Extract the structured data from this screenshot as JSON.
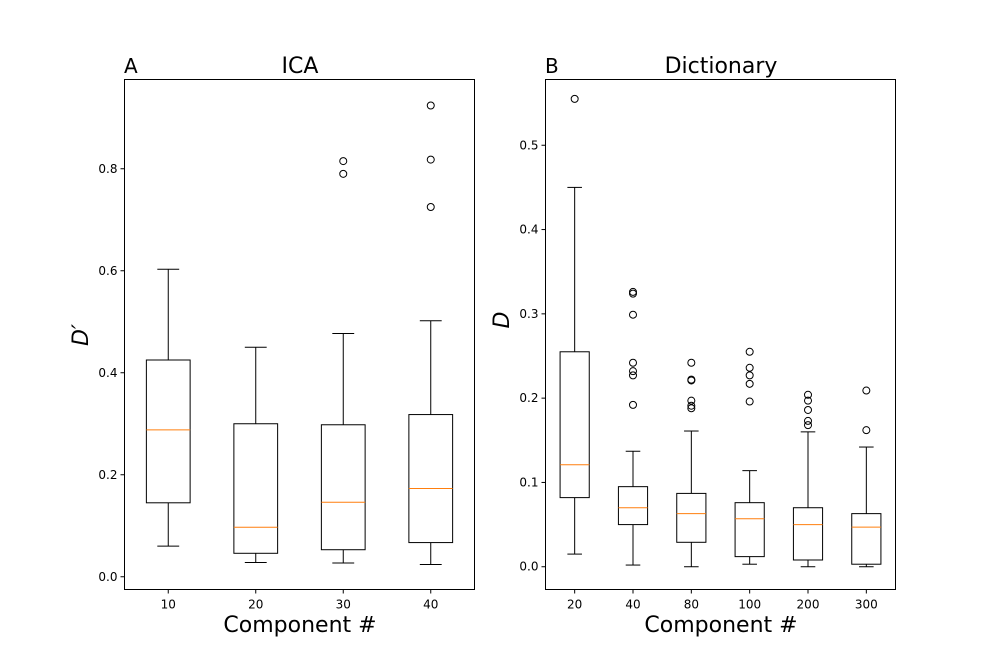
{
  "chart_data": [
    {
      "type": "boxplot",
      "panel": "A",
      "title": "ICA",
      "xlabel": "Component #",
      "ylabel": "D′",
      "ylim": [
        -0.025,
        0.975
      ],
      "yticks": [
        0.0,
        0.2,
        0.4,
        0.6,
        0.8
      ],
      "ytick_labels": [
        "0.0",
        "0.2",
        "0.4",
        "0.6",
        "0.8"
      ],
      "median_color": "#ff7f0e",
      "boxes": [
        {
          "label": "10",
          "whislo": 0.06,
          "q1": 0.145,
          "med": 0.288,
          "q3": 0.425,
          "whishi": 0.603,
          "fliers": []
        },
        {
          "label": "20",
          "whislo": 0.028,
          "q1": 0.046,
          "med": 0.097,
          "q3": 0.3,
          "whishi": 0.45,
          "fliers": []
        },
        {
          "label": "30",
          "whislo": 0.027,
          "q1": 0.053,
          "med": 0.146,
          "q3": 0.298,
          "whishi": 0.477,
          "fliers": [
            0.79,
            0.815
          ]
        },
        {
          "label": "40",
          "whislo": 0.024,
          "q1": 0.067,
          "med": 0.173,
          "q3": 0.318,
          "whishi": 0.502,
          "fliers": [
            0.725,
            0.818,
            0.924
          ]
        }
      ]
    },
    {
      "type": "boxplot",
      "panel": "B",
      "title": "Dictionary",
      "xlabel": "Component #",
      "ylabel": "D",
      "ylim": [
        -0.027,
        0.578
      ],
      "yticks": [
        0.0,
        0.1,
        0.2,
        0.3,
        0.4,
        0.5
      ],
      "ytick_labels": [
        "0.0",
        "0.1",
        "0.2",
        "0.3",
        "0.4",
        "0.5"
      ],
      "median_color": "#ff7f0e",
      "boxes": [
        {
          "label": "20",
          "whislo": 0.015,
          "q1": 0.082,
          "med": 0.121,
          "q3": 0.255,
          "whishi": 0.45,
          "fliers": [
            0.555
          ]
        },
        {
          "label": "40",
          "whislo": 0.002,
          "q1": 0.05,
          "med": 0.07,
          "q3": 0.095,
          "whishi": 0.137,
          "fliers": [
            0.192,
            0.227,
            0.232,
            0.242,
            0.299,
            0.324,
            0.326
          ]
        },
        {
          "label": "80",
          "whislo": 0.0,
          "q1": 0.029,
          "med": 0.063,
          "q3": 0.087,
          "whishi": 0.161,
          "fliers": [
            0.188,
            0.191,
            0.197,
            0.221,
            0.222,
            0.242
          ]
        },
        {
          "label": "100",
          "whislo": 0.003,
          "q1": 0.012,
          "med": 0.057,
          "q3": 0.076,
          "whishi": 0.114,
          "fliers": [
            0.196,
            0.217,
            0.227,
            0.236,
            0.255
          ]
        },
        {
          "label": "200",
          "whislo": 0.0,
          "q1": 0.008,
          "med": 0.05,
          "q3": 0.07,
          "whishi": 0.16,
          "fliers": [
            0.168,
            0.173,
            0.186,
            0.197,
            0.204
          ]
        },
        {
          "label": "300",
          "whislo": 0.0,
          "q1": 0.003,
          "med": 0.047,
          "q3": 0.063,
          "whishi": 0.142,
          "fliers": [
            0.162,
            0.209
          ]
        }
      ]
    }
  ]
}
